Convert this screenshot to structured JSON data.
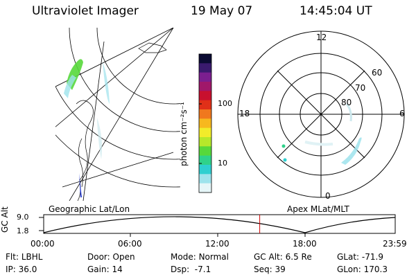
{
  "header": {
    "instrument": "Ultraviolet Imager",
    "date": "19 May 07",
    "time": "14:45:04 UT"
  },
  "colorbar": {
    "unit_label": "photon cm⁻²s⁻¹",
    "tick_labels": [
      "100",
      "10"
    ],
    "colors": [
      "#0b0b33",
      "#3a1a6e",
      "#7b1f8f",
      "#a0186a",
      "#c8102e",
      "#e03018",
      "#f0781e",
      "#f7b81e",
      "#f2ec2a",
      "#b6e82a",
      "#57d83a",
      "#2fd28a",
      "#2ecfd0",
      "#9ee3ec",
      "#e6f6f8"
    ]
  },
  "geo_panel": {
    "label": "Geographic Lat/Lon"
  },
  "polar_panel": {
    "label": "Apex MLat/MLT",
    "mlt_labels": {
      "top": "12",
      "left": "18",
      "right": "6",
      "bottom": "0"
    },
    "lat_labels": [
      "60",
      "70",
      "80"
    ]
  },
  "altitude_plot": {
    "ylabel": "GC Alt",
    "y_ticks": [
      "9.0",
      "1.8"
    ],
    "x_ticks": [
      "00:00",
      "06:00",
      "12:00",
      "18:00",
      "23:59"
    ],
    "current_time_hours": 14.75,
    "line_color": "#000000",
    "marker_color": "#cc0000"
  },
  "status": {
    "filter_label": "Flt:",
    "filter_value": "LBHL",
    "door_label": "Door:",
    "door_value": "Open",
    "mode_label": "Mode:",
    "mode_value": "Normal",
    "gc_alt_label": "GC Alt:",
    "gc_alt_value": "6.5 Re",
    "glat_label": "GLat:",
    "glat_value": "-71.9",
    "ip_label": "IP:",
    "ip_value": "36.0",
    "gain_label": "Gain:",
    "gain_value": "14",
    "dsp_label": "Dsp:",
    "dsp_value": "-7.1",
    "seq_label": "Seq:",
    "seq_value": "39",
    "glon_label": "GLon:",
    "glon_value": "170.3"
  }
}
